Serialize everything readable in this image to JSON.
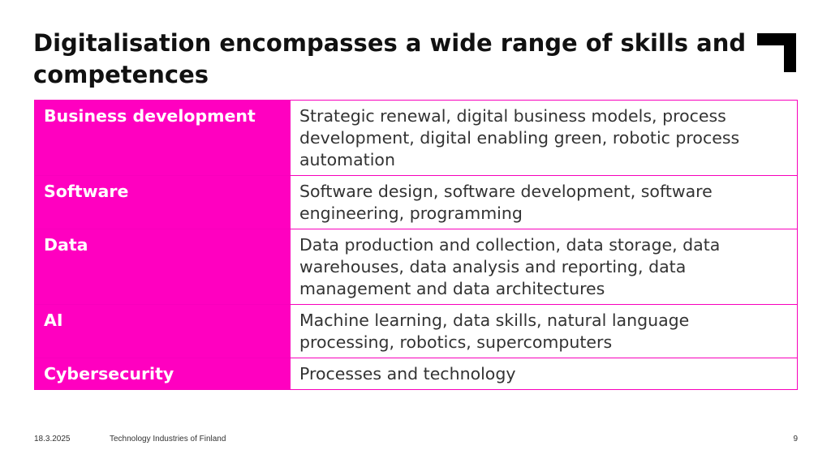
{
  "slide": {
    "title": "Digitalisation encompasses a wide range of skills and competences"
  },
  "table": {
    "rows": [
      {
        "category": "Business development",
        "description": "Strategic renewal, digital business models, process development, digital enabling green, robotic process automation"
      },
      {
        "category": "Software",
        "description": "Software design, software development, software engineering, programming"
      },
      {
        "category": "Data",
        "description": "Data production and collection, data storage, data warehouses, data analysis and reporting, data management and data architectures"
      },
      {
        "category": "AI",
        "description": "Machine learning, data skills, natural language processing, robotics, supercomputers"
      },
      {
        "category": "Cybersecurity",
        "description": "Processes and technology"
      }
    ]
  },
  "footer": {
    "date": "18.3.2025",
    "organization": "Technology Industries of Finland",
    "page_number": "9"
  },
  "colors": {
    "accent": "#ff00c0",
    "border": "#f800bc",
    "logo": "#000000"
  },
  "icons": {
    "logo": "corner-bracket-logo"
  }
}
